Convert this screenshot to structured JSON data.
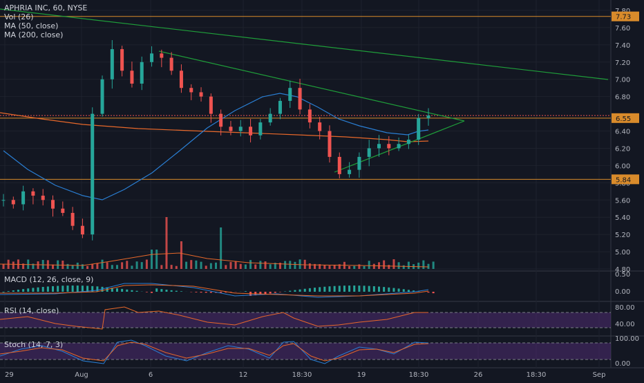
{
  "legend": {
    "title": "APHRIA INC, 60, NYSE",
    "vol": "Vol (26)",
    "ma50": "MA (50, close)",
    "ma200": "MA (200, close)"
  },
  "panes": {
    "macd": "MACD (12, 26, close, 9)",
    "rsi": "RSI (14, close)",
    "stoch": "Stoch (14, 7, 3)"
  },
  "colors": {
    "background": "#131722",
    "up": "#26a69a",
    "down": "#ef5350",
    "ma50": "#2a7fd4",
    "ma200": "#e8682a",
    "trendline": "#1f9e3a",
    "hline": "#d98b2b",
    "rsi_band": "#4a2a6a",
    "rsi_line": "#e8682a",
    "stoch_k": "#2a7fd4",
    "stoch_d": "#e8682a"
  },
  "chart_data": {
    "type": "candlestick",
    "symbol": "APHRIA INC",
    "interval": "60",
    "exchange": "NYSE",
    "price_axis_ticks": [
      "7.80",
      "7.60",
      "7.40",
      "7.20",
      "7.00",
      "6.80",
      "6.40",
      "6.20",
      "6.00",
      "5.80",
      "5.60",
      "5.40",
      "5.20",
      "5.00",
      "4.80"
    ],
    "price_badges": [
      {
        "value": "7.73",
        "color": "#d98b2b"
      },
      {
        "value": "6.55",
        "color": "#d98b2b"
      },
      {
        "value": "5.84",
        "color": "#d98b2b"
      }
    ],
    "horizontal_levels": [
      7.73,
      6.55,
      5.84
    ],
    "time_axis": [
      "29",
      "Aug",
      "6",
      "12",
      "18:30",
      "19",
      "18:30",
      "26",
      "18:30",
      "Sep"
    ],
    "ohlc_close_path": [
      5.6,
      5.55,
      5.7,
      5.65,
      5.6,
      5.5,
      5.45,
      5.3,
      5.2,
      6.6,
      7.0,
      7.35,
      7.1,
      6.95,
      7.2,
      7.3,
      7.25,
      7.1,
      6.9,
      6.85,
      6.8,
      6.6,
      6.45,
      6.4,
      6.45,
      6.35,
      6.5,
      6.6,
      6.75,
      6.9,
      6.65,
      6.5,
      6.4,
      6.1,
      5.9,
      5.95,
      6.1,
      6.2,
      6.25,
      6.2,
      6.25,
      6.3,
      6.55,
      6.58
    ],
    "ma50_path": [
      6.2,
      6.0,
      5.8,
      5.65,
      5.6,
      5.8,
      6.0,
      6.25,
      6.5,
      6.7,
      6.85,
      6.9,
      6.75,
      6.55,
      6.42,
      6.35,
      6.33,
      6.37,
      6.45,
      6.52
    ],
    "ma200_path": [
      6.6,
      6.5,
      6.45,
      6.42,
      6.4,
      6.38,
      6.35,
      6.33,
      6.3,
      6.28,
      6.28
    ],
    "trendlines": [
      {
        "from": [
          "29",
          7.8
        ],
        "to": [
          "Sep",
          7.0
        ]
      },
      {
        "from": [
          "6",
          7.3
        ],
        "to": [
          "26",
          6.5
        ]
      },
      {
        "from": [
          "19",
          5.9
        ],
        "to": [
          "26",
          6.5
        ]
      }
    ],
    "macd_axis": [
      "0.50",
      "0.00"
    ],
    "rsi_axis": [
      "80.00",
      "40.00"
    ],
    "stoch_axis": [
      "100.00",
      "0.00"
    ]
  }
}
